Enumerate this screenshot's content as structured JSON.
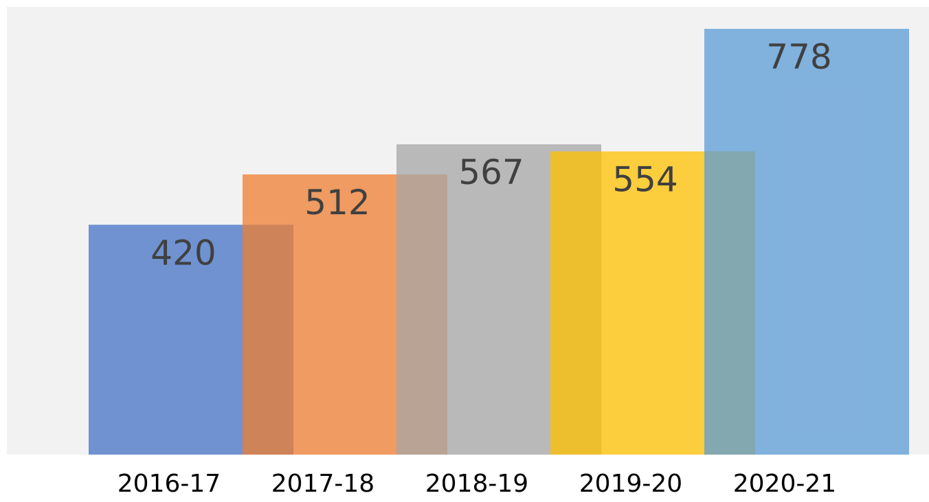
{
  "chart_data": {
    "type": "bar",
    "title": "",
    "xlabel": "",
    "ylabel": "",
    "categories": [
      "2016-17",
      "2017-18",
      "2018-19",
      "2019-20",
      "2020-21"
    ],
    "values": [
      420,
      512,
      567,
      554,
      778
    ],
    "data_labels": [
      "420",
      "512",
      "567",
      "554",
      "778"
    ],
    "ylim": [
      0,
      816
    ],
    "grid": false,
    "legend": "none",
    "colors": [
      "#4472C4",
      "#ED7D31",
      "#A5A5A5",
      "#FFC000",
      "#5B9BD5"
    ],
    "plot_background": "#F2F2F2",
    "bar_opacity": 0.75
  }
}
